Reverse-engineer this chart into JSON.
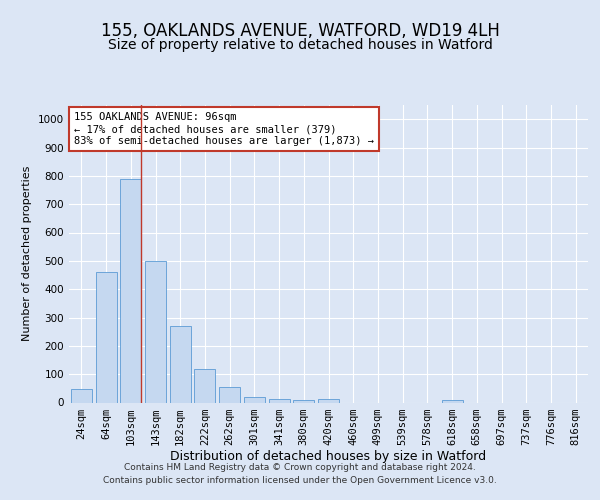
{
  "title_line1": "155, OAKLANDS AVENUE, WATFORD, WD19 4LH",
  "title_line2": "Size of property relative to detached houses in Watford",
  "xlabel": "Distribution of detached houses by size in Watford",
  "ylabel": "Number of detached properties",
  "footer_line1": "Contains HM Land Registry data © Crown copyright and database right 2024.",
  "footer_line2": "Contains public sector information licensed under the Open Government Licence v3.0.",
  "categories": [
    "24sqm",
    "64sqm",
    "103sqm",
    "143sqm",
    "182sqm",
    "222sqm",
    "262sqm",
    "301sqm",
    "341sqm",
    "380sqm",
    "420sqm",
    "460sqm",
    "499sqm",
    "539sqm",
    "578sqm",
    "618sqm",
    "658sqm",
    "697sqm",
    "737sqm",
    "776sqm",
    "816sqm"
  ],
  "values": [
    47,
    460,
    790,
    500,
    270,
    120,
    53,
    20,
    13,
    10,
    12,
    0,
    0,
    0,
    0,
    10,
    0,
    0,
    0,
    0,
    0
  ],
  "bar_color": "#c5d8f0",
  "bar_edge_color": "#5b9bd5",
  "highlight_bar_index": 2,
  "highlight_line_color": "#c0392b",
  "annotation_text": "155 OAKLANDS AVENUE: 96sqm\n← 17% of detached houses are smaller (379)\n83% of semi-detached houses are larger (1,873) →",
  "annotation_box_color": "#ffffff",
  "annotation_box_edge_color": "#c0392b",
  "ylim": [
    0,
    1050
  ],
  "yticks": [
    0,
    100,
    200,
    300,
    400,
    500,
    600,
    700,
    800,
    900,
    1000
  ],
  "bg_color": "#dce6f5",
  "plot_bg_color": "#dce6f5",
  "grid_color": "#ffffff",
  "title1_fontsize": 12,
  "title2_fontsize": 10,
  "xlabel_fontsize": 9,
  "ylabel_fontsize": 8,
  "tick_fontsize": 7.5,
  "footer_fontsize": 6.5
}
